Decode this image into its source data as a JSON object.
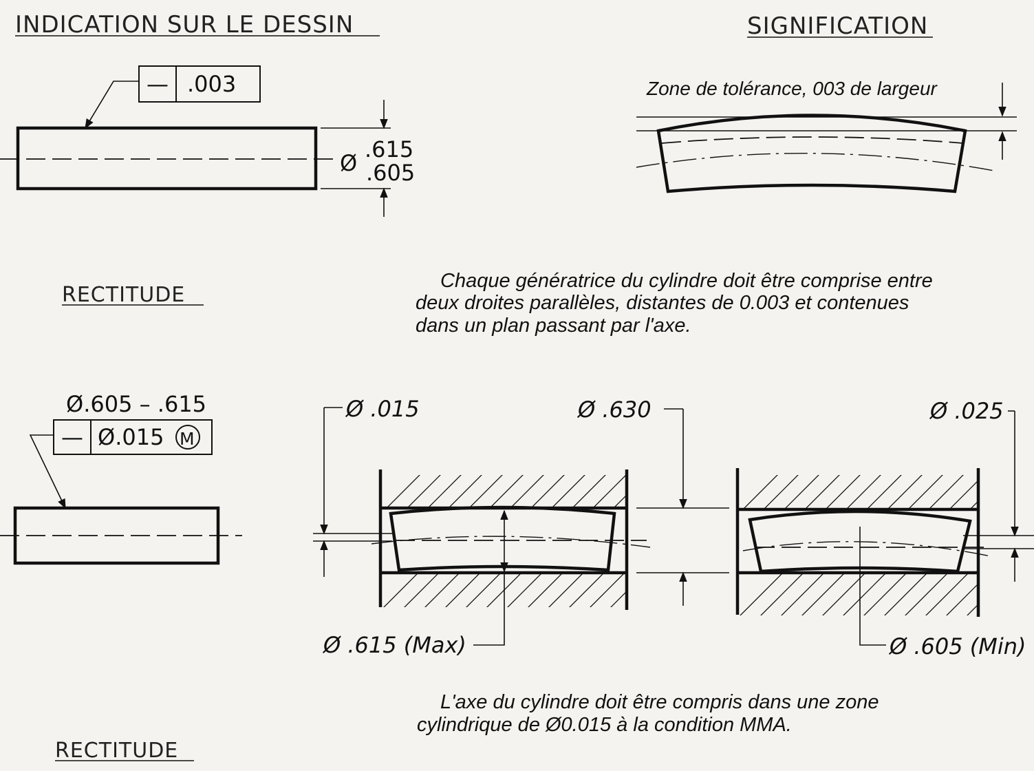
{
  "headers": {
    "left": "INDICATION SUR LE DESSIN",
    "right": "SIGNIFICATION"
  },
  "section1": {
    "fcf_symbol": "—",
    "fcf_value": ".003",
    "dim_symbol": "Ø",
    "dim_upper": ".615",
    "dim_lower": ".605",
    "label": "RECTITUDE",
    "zone_label": "Zone de tolérance, 003  de largeur",
    "description": [
      "Chaque génératrice du cylindre doit être comprise entre",
      "deux droites parallèles, distantes de 0.003 et contenues",
      "dans un plan passant par l'axe."
    ]
  },
  "section2": {
    "size_label": "Ø.605 – .615",
    "fcf_symbol": "—",
    "fcf_value": "Ø.015",
    "fcf_modifier": "M",
    "label": "RECTITUDE",
    "zone_dia": "Ø .015",
    "gauge_dia": "Ø .630",
    "zone_dia_min": "Ø .025",
    "max_label": "Ø .615 (Max)",
    "min_label": "Ø .605 (Min)",
    "description": [
      "L'axe du cylindre doit être compris dans une zone",
      "cylindrique de Ø0.015 à la condition MMA."
    ]
  }
}
